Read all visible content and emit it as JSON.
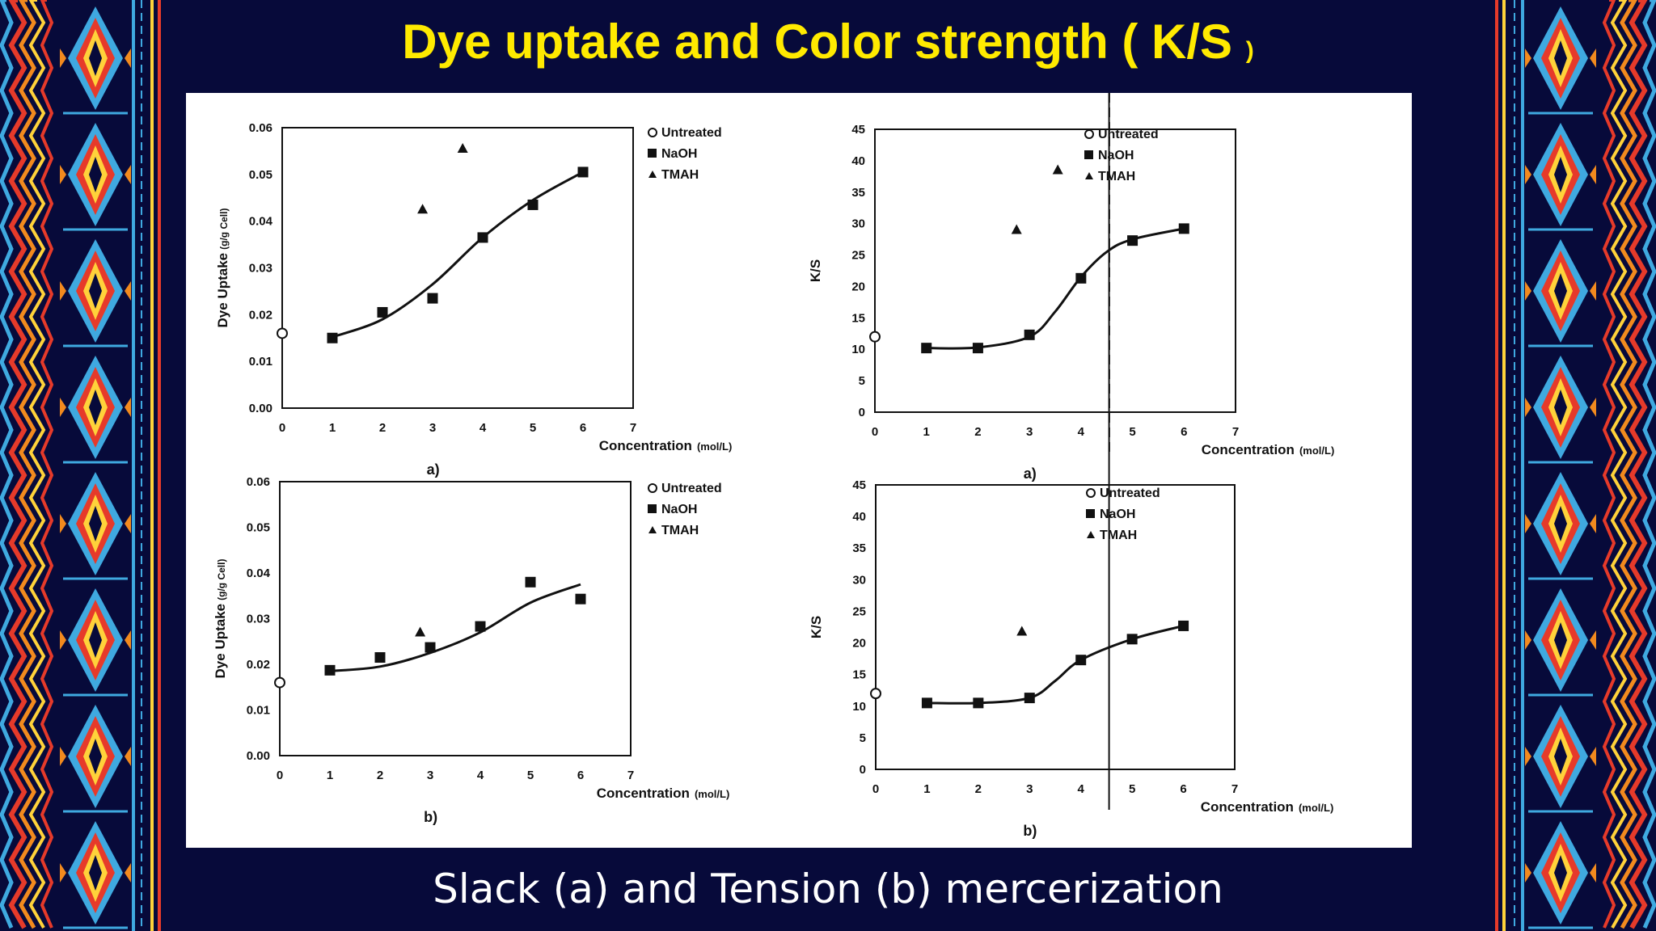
{
  "slide": {
    "title": "Dye uptake and Color strength ( K/S",
    "title_close": ")",
    "caption": "Slack (a) and Tension  (b) mercerization",
    "colors": {
      "background": "#070a3a",
      "title": "#ffea00",
      "caption": "#ffffff",
      "panel": "#ffffff"
    }
  },
  "chart_data": [
    {
      "type": "scatter",
      "panel_label": "a)",
      "xlabel": "Concentration",
      "xlabel_unit": "(mol/L)",
      "ylabel": "Dye Uptake",
      "ylabel_unit": "(g/g Cell)",
      "xlim": [
        0,
        7
      ],
      "ylim": [
        0,
        0.06
      ],
      "xticks": [
        "0",
        "1",
        "2",
        "3",
        "4",
        "5",
        "6",
        "7"
      ],
      "yticks": [
        "0.00",
        "0.01",
        "0.02",
        "0.03",
        "0.04",
        "0.05",
        "0.06"
      ],
      "legend": [
        "Untreated",
        "NaOH",
        "TMAH"
      ],
      "legend_position": "top-right",
      "series": [
        {
          "name": "Untreated",
          "marker": "circle",
          "x": [
            0
          ],
          "y": [
            0.016
          ]
        },
        {
          "name": "NaOH",
          "marker": "square",
          "x": [
            1,
            2,
            3,
            4,
            5,
            6
          ],
          "y": [
            0.015,
            0.0205,
            0.0235,
            0.0365,
            0.0435,
            0.0505
          ],
          "fit_line": true
        },
        {
          "name": "TMAH",
          "marker": "triangle",
          "x": [
            2.8,
            3.6
          ],
          "y": [
            0.0425,
            0.0555
          ]
        }
      ],
      "fit": {
        "x": [
          1,
          2,
          3,
          4,
          5,
          6
        ],
        "y": [
          0.0152,
          0.019,
          0.0265,
          0.0365,
          0.0445,
          0.0505
        ]
      }
    },
    {
      "type": "scatter",
      "panel_label": "a)",
      "xlabel": "Concentration",
      "xlabel_unit": "(mol/L)",
      "ylabel": "K/S",
      "xlim": [
        0,
        7
      ],
      "ylim": [
        0,
        45
      ],
      "xticks": [
        "0",
        "1",
        "2",
        "3",
        "4",
        "5",
        "6",
        "7"
      ],
      "yticks": [
        "0",
        "5",
        "10",
        "15",
        "20",
        "25",
        "30",
        "35",
        "40",
        "45"
      ],
      "legend": [
        "Untreated",
        "NaOH",
        "TMAH"
      ],
      "legend_position": "top-right",
      "series": [
        {
          "name": "Untreated",
          "marker": "circle",
          "x": [
            0
          ],
          "y": [
            12
          ]
        },
        {
          "name": "NaOH",
          "marker": "square",
          "x": [
            1,
            2,
            3,
            4,
            5,
            6
          ],
          "y": [
            10.2,
            10.2,
            12.3,
            21.3,
            27.3,
            29.2
          ],
          "fit_line": true
        },
        {
          "name": "TMAH",
          "marker": "triangle",
          "x": [
            2.75,
            3.55
          ],
          "y": [
            29,
            38.5
          ]
        }
      ],
      "fit": {
        "x": [
          1,
          2,
          3,
          3.5,
          4,
          4.5,
          5,
          6
        ],
        "y": [
          10.2,
          10.3,
          12,
          16,
          21.5,
          25.5,
          27.5,
          29.2
        ]
      }
    },
    {
      "type": "scatter",
      "panel_label": "b)",
      "xlabel": "Concentration",
      "xlabel_unit": "(mol/L)",
      "ylabel": "Dye Uptake",
      "ylabel_unit": "(g/g Cell)",
      "xlim": [
        0,
        7
      ],
      "ylim": [
        0,
        0.06
      ],
      "xticks": [
        "0",
        "1",
        "2",
        "3",
        "4",
        "5",
        "6",
        "7"
      ],
      "yticks": [
        "0.00",
        "0.01",
        "0.02",
        "0.03",
        "0.04",
        "0.05",
        "0.06"
      ],
      "legend": [
        "Untreated",
        "NaOH",
        "TMAH"
      ],
      "legend_position": "top-right",
      "series": [
        {
          "name": "Untreated",
          "marker": "circle",
          "x": [
            0
          ],
          "y": [
            0.016
          ]
        },
        {
          "name": "NaOH",
          "marker": "square",
          "x": [
            1,
            2,
            3,
            4,
            5,
            6
          ],
          "y": [
            0.0187,
            0.0215,
            0.0237,
            0.0283,
            0.038,
            0.0343
          ],
          "fit_line": true
        },
        {
          "name": "TMAH",
          "marker": "triangle",
          "x": [
            2.8
          ],
          "y": [
            0.027
          ]
        }
      ],
      "fit": {
        "x": [
          1,
          2,
          3,
          4,
          5,
          6
        ],
        "y": [
          0.0185,
          0.0195,
          0.0225,
          0.027,
          0.0335,
          0.0375
        ]
      }
    },
    {
      "type": "scatter",
      "panel_label": "b)",
      "xlabel": "Concentration",
      "xlabel_unit": "(mol/L)",
      "ylabel": "K/S",
      "xlim": [
        0,
        7
      ],
      "ylim": [
        0,
        45
      ],
      "xticks": [
        "0",
        "1",
        "2",
        "3",
        "4",
        "5",
        "6",
        "7"
      ],
      "yticks": [
        "0",
        "5",
        "10",
        "15",
        "20",
        "25",
        "30",
        "35",
        "40",
        "45"
      ],
      "legend": [
        "Untreated",
        "NaOH",
        "TMAH"
      ],
      "legend_position": "top-right",
      "series": [
        {
          "name": "Untreated",
          "marker": "circle",
          "x": [
            0
          ],
          "y": [
            12
          ]
        },
        {
          "name": "NaOH",
          "marker": "square",
          "x": [
            1,
            2,
            3,
            4,
            5,
            6
          ],
          "y": [
            10.5,
            10.5,
            11.3,
            17.3,
            20.6,
            22.7
          ],
          "fit_line": true
        },
        {
          "name": "TMAH",
          "marker": "triangle",
          "x": [
            2.85
          ],
          "y": [
            21.8
          ]
        }
      ],
      "fit": {
        "x": [
          1,
          2,
          3,
          3.5,
          4,
          5,
          6
        ],
        "y": [
          10.5,
          10.5,
          11.3,
          14,
          17.3,
          20.6,
          22.7
        ]
      }
    }
  ]
}
